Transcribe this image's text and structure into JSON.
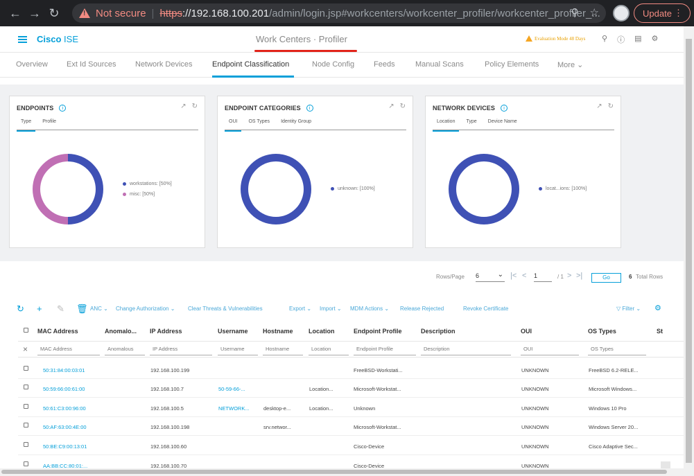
{
  "browser": {
    "not_secure": "Not secure",
    "url_scheme": "https",
    "url_host": "://192.168.100.201",
    "url_path": "/admin/login.jsp#workcenters/workcenter_profiler/workcenter_profiler_...",
    "update_label": "Update"
  },
  "header": {
    "brand_bold": "Cisco",
    "brand_light": "ISE",
    "title": "Work Centers · Profiler",
    "evaluation": "Evaluation Mode 48 Days"
  },
  "tabs": [
    {
      "label": "Overview"
    },
    {
      "label": "Ext Id Sources"
    },
    {
      "label": "Network Devices"
    },
    {
      "label": "Endpoint Classification"
    },
    {
      "label": "Node Config"
    },
    {
      "label": "Feeds"
    },
    {
      "label": "Manual Scans"
    },
    {
      "label": "Policy Elements"
    },
    {
      "label": "More"
    }
  ],
  "dashlets": [
    {
      "title": "ENDPOINTS",
      "tabs": [
        "Type",
        "Profile"
      ],
      "legend": [
        {
          "label": "workstations: [50%]",
          "color": "#3f51b5"
        },
        {
          "label": "misc: [50%]",
          "color": "#c06fb4"
        }
      ]
    },
    {
      "title": "ENDPOINT CATEGORIES",
      "tabs": [
        "OUI",
        "OS Types",
        "Identity Group"
      ],
      "legend": [
        {
          "label": "unknown: [100%]",
          "color": "#3f51b5"
        }
      ]
    },
    {
      "title": "NETWORK DEVICES",
      "tabs": [
        "Location",
        "Type",
        "Device Name"
      ],
      "legend": [
        {
          "label": "locat...ions: [100%]",
          "color": "#3f51b5"
        }
      ]
    }
  ],
  "pager": {
    "rows_label": "Rows/Page",
    "rows_value": "6",
    "page_value": "1",
    "page_total": "/ 1",
    "go_label": "Go",
    "total_count": "6",
    "total_label": "Total Rows"
  },
  "toolbar": {
    "anc": "ANC",
    "change_auth": "Change Authorization",
    "clear_threats": "Clear Threats & Vulnerabilities",
    "export": "Export",
    "import": "Import",
    "mdm": "MDM Actions",
    "release_rejected": "Release Rejected",
    "revoke_cert": "Revoke Certificate",
    "filter": "Filter"
  },
  "table": {
    "columns": [
      "MAC Address",
      "Anomalo...",
      "IP Address",
      "Username",
      "Hostname",
      "Location",
      "Endpoint Profile",
      "Description",
      "OUI",
      "OS Types",
      "St"
    ],
    "filters": [
      "MAC Address",
      "Anomalous",
      "IP Address",
      "Username",
      "Hostname",
      "Location",
      "Endpoint Profile",
      "Description",
      "OUI",
      "OS Types"
    ],
    "rows": [
      {
        "mac": "50:31:84:00:03:01",
        "ip": "192.168.100.199",
        "username": "",
        "hostname": "",
        "location": "",
        "profile": "FreeBSD-Workstati...",
        "oui": "UNKNOWN",
        "os": "FreeBSD 6.2-RELE..."
      },
      {
        "mac": "50:59:66:00:61:00",
        "ip": "192.168.100.7",
        "username": "50-59-66-...",
        "hostname": "",
        "location": "Location...",
        "profile": "Microsoft-Workstat...",
        "oui": "UNKNOWN",
        "os": "Microsoft Windows..."
      },
      {
        "mac": "50:61:C3:00:96:00",
        "ip": "192.168.100.5",
        "username": "NETWORK...",
        "hostname": "desktop-e...",
        "location": "Location...",
        "profile": "Unknown",
        "oui": "UNKNOWN",
        "os": "Windows 10 Pro"
      },
      {
        "mac": "50:AF:63:00:4E:00",
        "ip": "192.168.100.198",
        "username": "",
        "hostname": "srv.networ...",
        "location": "",
        "profile": "Microsoft-Workstat...",
        "oui": "UNKNOWN",
        "os": "Windows Server 20..."
      },
      {
        "mac": "50:BE:C9:00:13:01",
        "ip": "192.168.100.60",
        "username": "",
        "hostname": "",
        "location": "",
        "profile": "Cisco-Device",
        "oui": "UNKNOWN",
        "os": "Cisco Adaptive Sec..."
      },
      {
        "mac": "AA:BB:CC:80:01:...",
        "ip": "192.168.100.70",
        "username": "",
        "hostname": "",
        "location": "",
        "profile": "Cisco-Device",
        "oui": "UNKNOWN",
        "os": ""
      }
    ]
  }
}
